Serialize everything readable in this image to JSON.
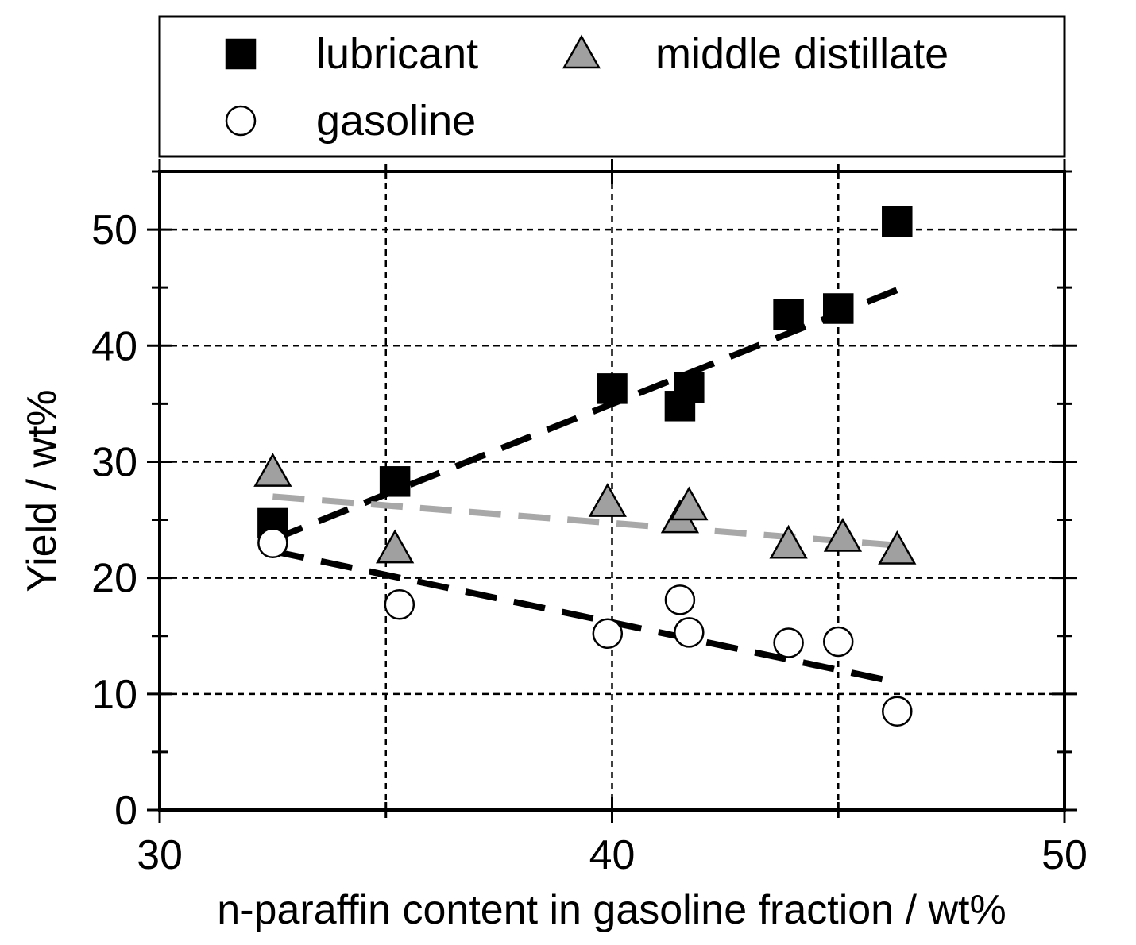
{
  "chart_data": {
    "type": "scatter",
    "xlabel": "n-paraffin content in gasoline fraction / wt%",
    "ylabel": "Yield / wt%",
    "xlim": [
      30,
      50
    ],
    "ylim": [
      0,
      55
    ],
    "x_ticks": [
      30,
      40,
      50
    ],
    "y_ticks": [
      0,
      10,
      20,
      30,
      40,
      50
    ],
    "grid": true,
    "legend_position": "top",
    "series": [
      {
        "name": "lubricant",
        "marker": "square",
        "fill": "#000000",
        "points": [
          [
            32.5,
            24.7
          ],
          [
            35.2,
            28.3
          ],
          [
            40.0,
            36.3
          ],
          [
            41.5,
            34.8
          ],
          [
            41.7,
            36.4
          ],
          [
            43.9,
            42.7
          ],
          [
            45.0,
            43.2
          ],
          [
            46.3,
            50.7
          ]
        ],
        "trend": {
          "x": [
            32.5,
            46.3
          ],
          "y": [
            23.3,
            44.8
          ],
          "color": "#000000"
        }
      },
      {
        "name": "middle distillate",
        "marker": "triangle",
        "fill": "#a0a0a0",
        "points": [
          [
            32.5,
            29.1
          ],
          [
            35.2,
            22.5
          ],
          [
            39.9,
            26.5
          ],
          [
            41.5,
            25.1
          ],
          [
            41.7,
            26.2
          ],
          [
            43.9,
            22.9
          ],
          [
            45.1,
            23.5
          ],
          [
            46.3,
            22.4
          ]
        ],
        "trend": {
          "x": [
            32.5,
            46.3
          ],
          "y": [
            27.0,
            22.8
          ],
          "color": "#a8a8a8"
        }
      },
      {
        "name": "gasoline",
        "marker": "circle",
        "fill": "#ffffff",
        "points": [
          [
            32.5,
            23.0
          ],
          [
            35.3,
            17.7
          ],
          [
            39.9,
            15.2
          ],
          [
            41.5,
            18.1
          ],
          [
            41.7,
            15.3
          ],
          [
            43.9,
            14.4
          ],
          [
            45.0,
            14.5
          ],
          [
            46.3,
            8.5
          ]
        ],
        "trend": {
          "x": [
            32.5,
            46.3
          ],
          "y": [
            22.3,
            11.0
          ],
          "color": "#000000"
        }
      }
    ]
  }
}
